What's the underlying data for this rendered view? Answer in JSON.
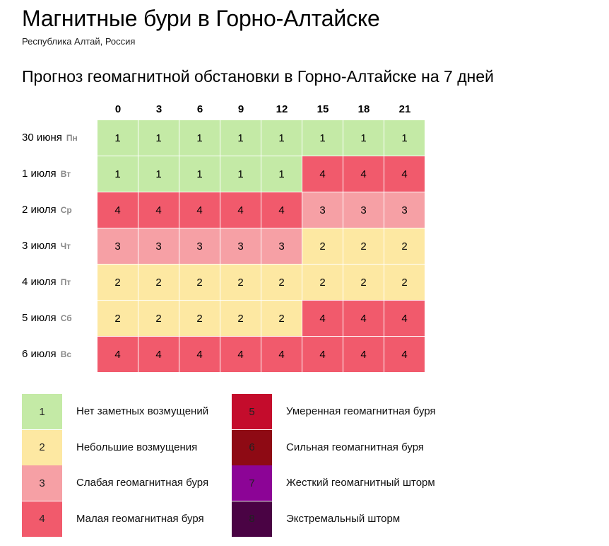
{
  "header": {
    "title": "Магнитные бури в Горно-Алтайске",
    "subtitle": "Республика Алтай, Россия"
  },
  "forecast": {
    "title": "Прогноз геомагнитной обстановки в Горно-Алтайске на 7 дней",
    "hours": [
      "0",
      "3",
      "6",
      "9",
      "12",
      "15",
      "18",
      "21"
    ],
    "days": [
      {
        "date": "30 июня",
        "dow": "Пн",
        "values": [
          1,
          1,
          1,
          1,
          1,
          1,
          1,
          1
        ]
      },
      {
        "date": "1 июля",
        "dow": "Вт",
        "values": [
          1,
          1,
          1,
          1,
          1,
          4,
          4,
          4
        ]
      },
      {
        "date": "2 июля",
        "dow": "Ср",
        "values": [
          4,
          4,
          4,
          4,
          4,
          3,
          3,
          3
        ]
      },
      {
        "date": "3 июля",
        "dow": "Чт",
        "values": [
          3,
          3,
          3,
          3,
          3,
          2,
          2,
          2
        ]
      },
      {
        "date": "4 июля",
        "dow": "Пт",
        "values": [
          2,
          2,
          2,
          2,
          2,
          2,
          2,
          2
        ]
      },
      {
        "date": "5 июля",
        "dow": "Сб",
        "values": [
          2,
          2,
          2,
          2,
          2,
          4,
          4,
          4
        ]
      },
      {
        "date": "6 июля",
        "dow": "Вс",
        "values": [
          4,
          4,
          4,
          4,
          4,
          4,
          4,
          4
        ]
      }
    ]
  },
  "legend": [
    {
      "level": "1",
      "label": "Нет заметных возмущений",
      "color": "#c4eaa6"
    },
    {
      "level": "2",
      "label": "Небольшие возмущения",
      "color": "#fde8a2"
    },
    {
      "level": "3",
      "label": "Слабая геомагнитная буря",
      "color": "#f6a0a5"
    },
    {
      "level": "4",
      "label": "Малая геомагнитная буря",
      "color": "#f15a6c"
    },
    {
      "level": "5",
      "label": "Умеренная геомагнитная буря",
      "color": "#c40c2c"
    },
    {
      "level": "6",
      "label": "Сильная геомагнитная буря",
      "color": "#8e0a14"
    },
    {
      "level": "7",
      "label": "Жесткий геомагнитный шторм",
      "color": "#8c0496"
    },
    {
      "level": "8",
      "label": "Экстремальный шторм",
      "color": "#4a0344"
    }
  ]
}
